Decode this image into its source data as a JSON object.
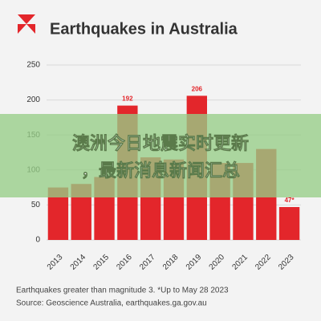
{
  "chart_data": {
    "type": "bar",
    "title": "Earthquakes in Australia",
    "categories": [
      "2013",
      "2014",
      "2015",
      "2016",
      "2017",
      "2018",
      "2019",
      "2020",
      "2021",
      "2022",
      "2023"
    ],
    "values": [
      75,
      80,
      90,
      192,
      118,
      115,
      206,
      110,
      110,
      130,
      47
    ],
    "value_labels": [
      null,
      null,
      null,
      "192",
      null,
      null,
      "206",
      null,
      null,
      null,
      "47*"
    ],
    "color": "#e3262b",
    "ylim": [
      0,
      250
    ],
    "yticks": [
      0,
      50,
      100,
      150,
      200,
      250
    ],
    "grid": true,
    "footnote": "Earthquakes greater than magnitude 3.  *Up to May 28 2023",
    "source": "Source: Geoscience Australia, earthquakes.ga.gov.au"
  },
  "overlay": {
    "lines": [
      "澳洲今日地震实时更新",
      "，最新消息新闻汇总"
    ]
  }
}
